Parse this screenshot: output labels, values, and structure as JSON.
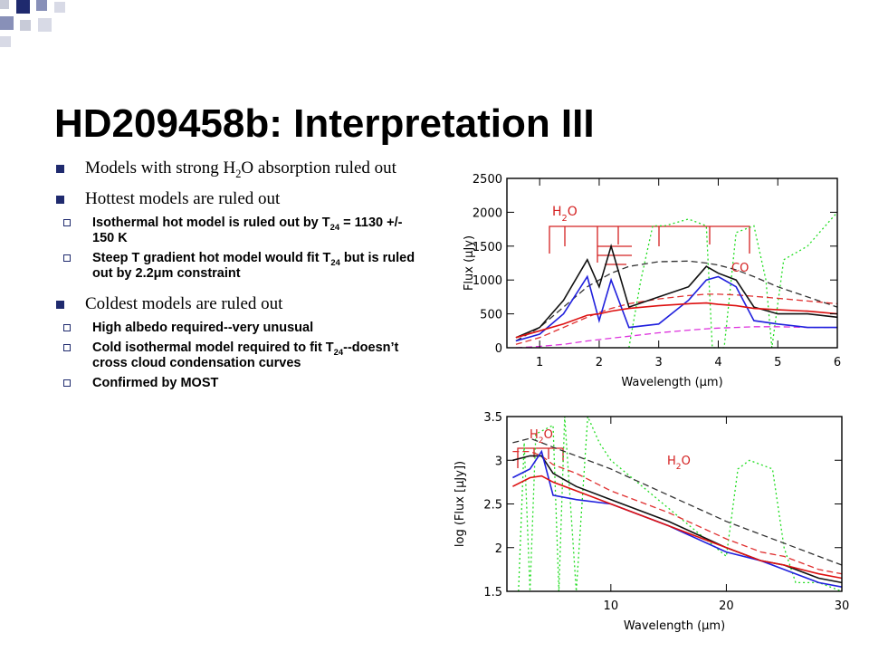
{
  "slide": {
    "title": "HD209458b: Interpretation III",
    "bullets": [
      {
        "parts": [
          "Models with strong H",
          "2",
          "O absorption ruled out"
        ],
        "subs": []
      },
      {
        "parts": [
          "Hottest models are ruled out"
        ],
        "subs": [
          {
            "parts": [
              "Isothermal hot model is ruled out by T",
              "24",
              " = 1130 +/- 150 K"
            ]
          },
          {
            "parts": [
              "Steep T gradient hot model would fit T",
              "24",
              " but is ruled out by 2.2μm constraint"
            ]
          }
        ]
      },
      {
        "parts": [
          "Coldest models are ruled out"
        ],
        "subs": [
          {
            "parts": [
              "High albedo required--very unusual"
            ]
          },
          {
            "parts": [
              "Cold isothermal model required to fit T",
              "24",
              "--doesn’t cross cloud condensation curves"
            ]
          },
          {
            "parts": [
              "Confirmed by MOST"
            ]
          }
        ]
      }
    ]
  },
  "chart_data": [
    {
      "type": "line",
      "xlabel": "Wavelength (μm)",
      "ylabel": "Flux (μJy)",
      "xlim": [
        0.45,
        6
      ],
      "ylim": [
        0,
        2500
      ],
      "xticks": [
        1,
        2,
        3,
        4,
        5,
        6
      ],
      "yticks": [
        0,
        500,
        1000,
        1500,
        2000,
        2500
      ],
      "annotations": [
        {
          "parts": [
            "H",
            "2",
            "O"
          ],
          "color": "#d42020"
        },
        {
          "parts": [
            "CO"
          ],
          "color": "#d42020"
        }
      ],
      "series": [
        {
          "color": "#22dd22",
          "dash": "dotted",
          "x": [
            2.5,
            2.7,
            2.9,
            3.1,
            3.5,
            3.8,
            3.9,
            4.1,
            4.3,
            4.6,
            4.8,
            4.9,
            5.1,
            5.5,
            6.0
          ],
          "values": [
            0,
            1000,
            1800,
            1800,
            1900,
            1800,
            0,
            0,
            1700,
            1800,
            1000,
            0,
            1300,
            1500,
            2000
          ]
        },
        {
          "color": "#333333",
          "dash": "dashed",
          "x": [
            0.6,
            1.0,
            1.4,
            1.8,
            2.0,
            2.2,
            2.5,
            3.0,
            3.5,
            3.8,
            4.0,
            4.3,
            4.6,
            5.0,
            5.5,
            6.0
          ],
          "values": [
            100,
            300,
            600,
            900,
            1000,
            1100,
            1200,
            1270,
            1280,
            1250,
            1220,
            1150,
            1050,
            900,
            750,
            600
          ]
        },
        {
          "color": "#e03030",
          "dash": "dashed",
          "x": [
            0.6,
            1.0,
            1.4,
            1.8,
            2.0,
            2.2,
            2.5,
            3.0,
            3.5,
            3.8,
            4.0,
            4.3,
            4.6,
            5.0,
            5.5,
            6.0
          ],
          "values": [
            50,
            150,
            300,
            450,
            520,
            580,
            650,
            720,
            770,
            790,
            790,
            780,
            760,
            730,
            690,
            650
          ]
        },
        {
          "color": "#dd33dd",
          "dash": "dashed",
          "x": [
            0.6,
            1.0,
            1.4,
            1.8,
            2.0,
            2.2,
            2.5,
            3.0,
            3.5,
            3.8,
            4.0,
            4.3,
            4.6,
            5.0,
            5.5,
            6.0
          ],
          "values": [
            0,
            20,
            50,
            100,
            120,
            140,
            170,
            220,
            260,
            280,
            290,
            300,
            310,
            310,
            300,
            300
          ]
        },
        {
          "color": "#111111",
          "dash": "solid",
          "x": [
            0.6,
            1.0,
            1.4,
            1.8,
            2.0,
            2.2,
            2.5,
            3.0,
            3.5,
            3.8,
            4.0,
            4.3,
            4.6,
            5.0,
            5.5,
            6.0
          ],
          "values": [
            150,
            300,
            700,
            1300,
            900,
            1500,
            600,
            750,
            900,
            1200,
            1100,
            1000,
            600,
            500,
            500,
            450
          ]
        },
        {
          "color": "#2020dd",
          "dash": "solid",
          "x": [
            0.6,
            1.0,
            1.4,
            1.8,
            2.0,
            2.2,
            2.5,
            3.0,
            3.5,
            3.8,
            4.0,
            4.3,
            4.6,
            5.0,
            5.5,
            6.0
          ],
          "values": [
            100,
            200,
            500,
            1050,
            400,
            1000,
            300,
            350,
            700,
            1000,
            1050,
            900,
            400,
            350,
            300,
            300
          ]
        },
        {
          "color": "#dd1010",
          "dash": "solid",
          "x": [
            0.6,
            1.0,
            1.4,
            1.8,
            2.0,
            2.2,
            2.5,
            3.0,
            3.5,
            3.8,
            4.0,
            4.3,
            4.6,
            5.0,
            5.5,
            6.0
          ],
          "values": [
            150,
            250,
            350,
            480,
            500,
            540,
            580,
            620,
            650,
            660,
            640,
            620,
            580,
            560,
            540,
            500
          ]
        }
      ]
    },
    {
      "type": "line",
      "xlabel": "Wavelength (μm)",
      "ylabel": "log (Flux [μJy])",
      "xlim": [
        1,
        30
      ],
      "ylim": [
        1.5,
        3.5
      ],
      "xticks": [
        10,
        20,
        30
      ],
      "yticks": [
        1.5,
        2,
        2.5,
        3,
        3.5
      ],
      "annotations": [
        {
          "parts": [
            "H",
            "2",
            "O"
          ],
          "color": "#d42020"
        },
        {
          "parts": [
            "H",
            "2",
            "O"
          ],
          "color": "#d42020"
        }
      ],
      "series": [
        {
          "color": "#22dd22",
          "dash": "dotted",
          "x": [
            2,
            2.5,
            3,
            3.5,
            5,
            5.5,
            6,
            7,
            8,
            9,
            10,
            20,
            21,
            22,
            24,
            25,
            26,
            28,
            30
          ],
          "values": [
            1.5,
            3.2,
            1.5,
            3.3,
            3.4,
            1.5,
            3.5,
            1.5,
            3.5,
            3.2,
            3.0,
            1.9,
            2.9,
            3.0,
            2.9,
            2.0,
            1.6,
            1.6,
            1.5
          ]
        },
        {
          "color": "#333333",
          "dash": "dashed",
          "x": [
            1.5,
            3,
            4,
            5,
            7,
            10,
            15,
            20,
            23,
            25,
            28,
            30
          ],
          "values": [
            3.2,
            3.25,
            3.2,
            3.15,
            3.05,
            2.9,
            2.6,
            2.3,
            2.15,
            2.05,
            1.9,
            1.8
          ]
        },
        {
          "color": "#e03030",
          "dash": "dashed",
          "x": [
            1.5,
            3,
            4,
            5,
            7,
            10,
            15,
            20,
            23,
            25,
            28,
            30
          ],
          "values": [
            3.1,
            3.1,
            3.05,
            2.95,
            2.85,
            2.65,
            2.4,
            2.1,
            1.95,
            1.9,
            1.75,
            1.7
          ]
        },
        {
          "color": "#111111",
          "dash": "solid",
          "x": [
            1.5,
            3,
            4,
            5,
            7,
            10,
            15,
            20,
            23,
            25,
            28,
            30
          ],
          "values": [
            3.0,
            3.05,
            3.05,
            2.85,
            2.7,
            2.55,
            2.3,
            2.0,
            1.85,
            1.8,
            1.65,
            1.6
          ]
        },
        {
          "color": "#2020dd",
          "dash": "solid",
          "x": [
            1.5,
            3,
            4,
            5,
            7,
            10,
            15,
            20,
            23,
            25,
            28,
            30
          ],
          "values": [
            2.8,
            2.9,
            3.1,
            2.6,
            2.55,
            2.5,
            2.25,
            1.95,
            1.85,
            1.75,
            1.6,
            1.55
          ]
        },
        {
          "color": "#dd1010",
          "dash": "solid",
          "x": [
            1.5,
            3,
            4,
            5,
            7,
            10,
            15,
            20,
            23,
            25,
            28,
            30
          ],
          "values": [
            2.7,
            2.8,
            2.82,
            2.75,
            2.65,
            2.5,
            2.25,
            2.0,
            1.85,
            1.8,
            1.7,
            1.65
          ]
        }
      ]
    }
  ]
}
